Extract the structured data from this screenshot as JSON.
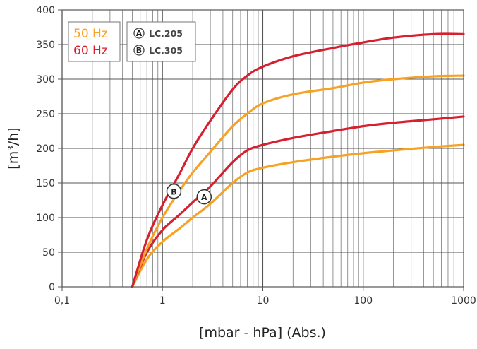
{
  "chart_data": {
    "type": "line",
    "x_scale": "log",
    "xlim": [
      0.1,
      1000
    ],
    "ylim": [
      0,
      400
    ],
    "grid": true,
    "xlabel": "[mbar - hPa] (Abs.)",
    "ylabel": "[m³/h]",
    "x_ticks": [
      "0,1",
      "1",
      "10",
      "100",
      "1000"
    ],
    "y_ticks": [
      "0",
      "50",
      "100",
      "150",
      "200",
      "250",
      "300",
      "350",
      "400"
    ],
    "legend": {
      "frequencies": [
        {
          "label": "50 Hz",
          "color": "#f7a224"
        },
        {
          "label": "60 Hz",
          "color": "#d7202f"
        }
      ],
      "models": [
        {
          "marker": "A",
          "label": "LC.205"
        },
        {
          "marker": "B",
          "label": "LC.305"
        }
      ]
    },
    "series": [
      {
        "model": "A",
        "frequency": "50 Hz",
        "color": "#f7a224",
        "x": [
          0.5,
          0.7,
          1,
          1.5,
          2,
          3,
          5,
          7,
          10,
          20,
          50,
          100,
          200,
          500,
          1000
        ],
        "y": [
          0,
          40,
          65,
          85,
          100,
          120,
          150,
          165,
          172,
          180,
          188,
          193,
          197,
          202,
          205
        ]
      },
      {
        "model": "A",
        "frequency": "60 Hz",
        "color": "#d7202f",
        "x": [
          0.5,
          0.7,
          1,
          1.5,
          2,
          3,
          5,
          7,
          10,
          20,
          50,
          100,
          200,
          500,
          1000
        ],
        "y": [
          0,
          50,
          82,
          105,
          122,
          145,
          180,
          197,
          205,
          215,
          225,
          232,
          237,
          242,
          246
        ]
      },
      {
        "model": "B",
        "frequency": "50 Hz",
        "color": "#f7a224",
        "x": [
          0.5,
          0.7,
          1,
          1.5,
          2,
          3,
          5,
          7,
          10,
          20,
          50,
          100,
          200,
          500,
          1000
        ],
        "y": [
          0,
          55,
          100,
          140,
          165,
          195,
          232,
          250,
          265,
          278,
          287,
          295,
          300,
          304,
          305
        ]
      },
      {
        "model": "B",
        "frequency": "60 Hz",
        "color": "#d7202f",
        "x": [
          0.5,
          0.7,
          1,
          1.5,
          2,
          3,
          5,
          7,
          10,
          20,
          50,
          100,
          200,
          500,
          1000
        ],
        "y": [
          0,
          68,
          118,
          165,
          200,
          240,
          285,
          305,
          318,
          333,
          345,
          353,
          360,
          365,
          365
        ]
      }
    ],
    "markers": [
      {
        "text": "A",
        "x": 2.6,
        "y": 130
      },
      {
        "text": "B",
        "x": 1.3,
        "y": 138
      }
    ]
  }
}
